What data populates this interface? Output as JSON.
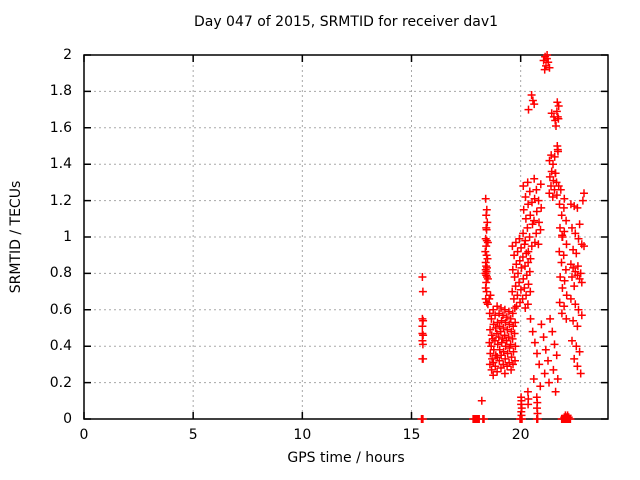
{
  "title": "Day 047 of 2015, SRMTID for receiver dav1",
  "chart_data": {
    "type": "scatter",
    "title": "Day 047 of 2015, SRMTID for receiver dav1",
    "xlabel": "GPS time / hours",
    "ylabel": "SRMTID / TECUs",
    "xlim": [
      0,
      24
    ],
    "ylim": [
      0,
      2
    ],
    "xticks": {
      "values": [
        0,
        5,
        10,
        15,
        20
      ],
      "labels": [
        "0",
        "5",
        "10",
        "15",
        "20"
      ]
    },
    "yticks": {
      "values": [
        0,
        0.2,
        0.4,
        0.6,
        0.8,
        1,
        1.2,
        1.4,
        1.6,
        1.8,
        2
      ],
      "labels": [
        "0",
        "0.2",
        "0.4",
        "0.6",
        "0.8",
        "1",
        "1.2",
        "1.4",
        "1.6",
        "1.8",
        "2"
      ]
    },
    "grid": true,
    "legend": "none",
    "marker": "plus",
    "colors": {
      "marker": "#ff0000",
      "axis": "#000000",
      "grid": "#a8a8a8",
      "background": "#ffffff"
    },
    "points": [
      [
        15.5,
        0.78
      ],
      [
        15.52,
        0.7
      ],
      [
        15.5,
        0.55
      ],
      [
        15.53,
        0.54
      ],
      [
        15.5,
        0.51
      ],
      [
        15.5,
        0.47
      ],
      [
        15.53,
        0.46
      ],
      [
        15.5,
        0.43
      ],
      [
        15.52,
        0.41
      ],
      [
        15.5,
        0.33
      ],
      [
        15.53,
        0.33
      ],
      [
        15.46,
        0.0
      ],
      [
        15.49,
        0.0
      ],
      [
        15.52,
        0.0
      ],
      [
        17.82,
        0
      ],
      [
        17.86,
        0
      ],
      [
        17.9,
        0
      ],
      [
        17.94,
        0
      ],
      [
        17.98,
        0
      ],
      [
        18.02,
        0
      ],
      [
        18.06,
        0
      ],
      [
        18.1,
        0
      ],
      [
        18.27,
        0
      ],
      [
        18.32,
        0
      ],
      [
        19.97,
        0
      ],
      [
        20.0,
        0
      ],
      [
        20.03,
        0
      ],
      [
        20.06,
        0
      ],
      [
        20.74,
        0
      ],
      [
        20.78,
        0
      ],
      [
        21.88,
        0
      ],
      [
        21.92,
        0
      ],
      [
        21.96,
        0
      ],
      [
        22.0,
        0
      ],
      [
        22.04,
        0
      ],
      [
        22.08,
        0
      ],
      [
        22.12,
        0
      ],
      [
        22.16,
        0
      ],
      [
        22.2,
        0
      ],
      [
        22.24,
        0
      ],
      [
        22.28,
        0
      ],
      [
        22.0,
        0.01
      ],
      [
        22.05,
        0.02
      ],
      [
        22.1,
        0.01
      ],
      [
        22.15,
        0.02
      ],
      [
        22.2,
        0.01
      ],
      [
        18.4,
        1.21
      ],
      [
        18.45,
        1.15
      ],
      [
        18.42,
        1.12
      ],
      [
        18.47,
        1.08
      ],
      [
        18.42,
        1.05
      ],
      [
        18.44,
        1.04
      ],
      [
        18.4,
        0.99
      ],
      [
        18.45,
        0.98
      ],
      [
        18.5,
        0.97
      ],
      [
        18.42,
        0.95
      ],
      [
        18.38,
        0.92
      ],
      [
        18.44,
        0.9
      ],
      [
        18.48,
        0.88
      ],
      [
        18.4,
        0.86
      ],
      [
        18.42,
        0.84
      ],
      [
        18.46,
        0.83
      ],
      [
        18.4,
        0.82
      ],
      [
        18.44,
        0.81
      ],
      [
        18.38,
        0.8
      ],
      [
        18.42,
        0.79
      ],
      [
        18.46,
        0.78
      ],
      [
        18.5,
        0.77
      ],
      [
        18.42,
        0.75
      ],
      [
        18.4,
        0.72
      ],
      [
        18.44,
        0.7
      ],
      [
        18.4,
        0.66
      ],
      [
        18.45,
        0.64
      ],
      [
        18.5,
        0.63
      ],
      [
        18.56,
        0.66
      ],
      [
        18.62,
        0.68
      ],
      [
        18.58,
        0.58
      ],
      [
        18.6,
        0.49
      ],
      [
        18.57,
        0.42
      ],
      [
        18.61,
        0.36
      ],
      [
        18.59,
        0.3
      ],
      [
        18.66,
        0.55
      ],
      [
        18.68,
        0.46
      ],
      [
        18.65,
        0.4
      ],
      [
        18.69,
        0.33
      ],
      [
        18.67,
        0.27
      ],
      [
        18.74,
        0.6
      ],
      [
        18.76,
        0.52
      ],
      [
        18.73,
        0.44
      ],
      [
        18.77,
        0.38
      ],
      [
        18.75,
        0.31
      ],
      [
        18.74,
        0.24
      ],
      [
        18.83,
        0.57
      ],
      [
        18.85,
        0.5
      ],
      [
        18.82,
        0.43
      ],
      [
        18.86,
        0.35
      ],
      [
        18.84,
        0.29
      ],
      [
        18.92,
        0.62
      ],
      [
        18.94,
        0.53
      ],
      [
        18.91,
        0.47
      ],
      [
        18.95,
        0.41
      ],
      [
        18.93,
        0.34
      ],
      [
        18.92,
        0.26
      ],
      [
        19.01,
        0.58
      ],
      [
        19.03,
        0.51
      ],
      [
        19.0,
        0.45
      ],
      [
        19.04,
        0.38
      ],
      [
        19.02,
        0.32
      ],
      [
        19.1,
        0.61
      ],
      [
        19.12,
        0.54
      ],
      [
        19.09,
        0.48
      ],
      [
        19.13,
        0.42
      ],
      [
        19.11,
        0.35
      ],
      [
        19.1,
        0.28
      ],
      [
        19.19,
        0.57
      ],
      [
        19.21,
        0.5
      ],
      [
        19.18,
        0.44
      ],
      [
        19.22,
        0.37
      ],
      [
        19.2,
        0.3
      ],
      [
        19.28,
        0.6
      ],
      [
        19.3,
        0.53
      ],
      [
        19.27,
        0.46
      ],
      [
        19.31,
        0.4
      ],
      [
        19.29,
        0.33
      ],
      [
        19.28,
        0.25
      ],
      [
        19.37,
        0.56
      ],
      [
        19.39,
        0.49
      ],
      [
        19.36,
        0.43
      ],
      [
        19.4,
        0.36
      ],
      [
        19.38,
        0.29
      ],
      [
        19.46,
        0.59
      ],
      [
        19.48,
        0.52
      ],
      [
        19.45,
        0.45
      ],
      [
        19.49,
        0.39
      ],
      [
        19.47,
        0.31
      ],
      [
        19.55,
        0.55
      ],
      [
        19.57,
        0.48
      ],
      [
        19.54,
        0.41
      ],
      [
        19.58,
        0.34
      ],
      [
        19.56,
        0.27
      ],
      [
        19.64,
        0.58
      ],
      [
        19.66,
        0.51
      ],
      [
        19.63,
        0.44
      ],
      [
        19.67,
        0.37
      ],
      [
        19.65,
        0.3
      ],
      [
        19.73,
        0.61
      ],
      [
        19.75,
        0.53
      ],
      [
        19.72,
        0.47
      ],
      [
        19.76,
        0.4
      ],
      [
        19.74,
        0.32
      ],
      [
        19.62,
        0.95
      ],
      [
        19.64,
        0.82
      ],
      [
        19.61,
        0.7
      ],
      [
        19.7,
        0.9
      ],
      [
        19.72,
        0.78
      ],
      [
        19.69,
        0.66
      ],
      [
        19.78,
        0.97
      ],
      [
        19.8,
        0.85
      ],
      [
        19.77,
        0.73
      ],
      [
        19.81,
        0.62
      ],
      [
        19.86,
        0.92
      ],
      [
        19.88,
        0.8
      ],
      [
        19.85,
        0.68
      ],
      [
        19.94,
        0.99
      ],
      [
        19.96,
        0.87
      ],
      [
        19.93,
        0.75
      ],
      [
        19.97,
        0.64
      ],
      [
        20.02,
        0.94
      ],
      [
        20.04,
        0.83
      ],
      [
        20.01,
        0.71
      ],
      [
        20.1,
        0.89
      ],
      [
        20.12,
        0.77
      ],
      [
        20.09,
        0.66
      ],
      [
        20.18,
        0.96
      ],
      [
        20.2,
        0.84
      ],
      [
        20.17,
        0.72
      ],
      [
        20.21,
        0.61
      ],
      [
        20.26,
        0.91
      ],
      [
        20.28,
        0.79
      ],
      [
        20.25,
        0.68
      ],
      [
        20.34,
        0.86
      ],
      [
        20.36,
        0.74
      ],
      [
        20.33,
        0.63
      ],
      [
        20.42,
        0.81
      ],
      [
        20.44,
        0.7
      ],
      [
        20.12,
        1.28
      ],
      [
        20.14,
        1.15
      ],
      [
        20.11,
        1.02
      ],
      [
        20.22,
        1.22
      ],
      [
        20.24,
        1.1
      ],
      [
        20.21,
        0.98
      ],
      [
        20.32,
        1.3
      ],
      [
        20.34,
        1.18
      ],
      [
        20.31,
        1.05
      ],
      [
        20.35,
        0.92
      ],
      [
        20.42,
        1.25
      ],
      [
        20.44,
        1.12
      ],
      [
        20.41,
        1.0
      ],
      [
        20.45,
        0.88
      ],
      [
        20.52,
        1.19
      ],
      [
        20.54,
        1.07
      ],
      [
        20.51,
        0.95
      ],
      [
        20.62,
        1.32
      ],
      [
        20.64,
        1.21
      ],
      [
        20.61,
        1.09
      ],
      [
        20.65,
        0.97
      ],
      [
        20.72,
        1.26
      ],
      [
        20.74,
        1.14
      ],
      [
        20.71,
        1.02
      ],
      [
        20.82,
        1.2
      ],
      [
        20.84,
        1.08
      ],
      [
        20.81,
        0.96
      ],
      [
        20.92,
        1.29
      ],
      [
        20.94,
        1.16
      ],
      [
        20.91,
        1.04
      ],
      [
        20.5,
        1.78
      ],
      [
        20.56,
        1.75
      ],
      [
        20.62,
        1.73
      ],
      [
        20.36,
        1.7
      ],
      [
        21.05,
        1.97
      ],
      [
        21.12,
        1.99
      ],
      [
        21.2,
        1.98
      ],
      [
        21.16,
        1.94
      ],
      [
        21.26,
        1.96
      ],
      [
        21.1,
        1.92
      ],
      [
        21.32,
        1.93
      ],
      [
        21.21,
        2.0
      ],
      [
        21.42,
        1.68
      ],
      [
        21.52,
        1.66
      ],
      [
        21.58,
        1.64
      ],
      [
        21.62,
        1.61
      ],
      [
        21.32,
        1.42
      ],
      [
        21.34,
        1.33
      ],
      [
        21.31,
        1.24
      ],
      [
        21.4,
        1.45
      ],
      [
        21.42,
        1.36
      ],
      [
        21.39,
        1.28
      ],
      [
        21.48,
        1.4
      ],
      [
        21.5,
        1.31
      ],
      [
        21.47,
        1.22
      ],
      [
        21.56,
        1.44
      ],
      [
        21.58,
        1.35
      ],
      [
        21.55,
        1.26
      ],
      [
        21.68,
        1.74
      ],
      [
        21.74,
        1.72
      ],
      [
        21.66,
        1.69
      ],
      [
        21.7,
        1.66
      ],
      [
        21.73,
        1.65
      ],
      [
        21.68,
        1.5
      ],
      [
        21.7,
        1.48
      ],
      [
        21.71,
        1.47
      ],
      [
        21.6,
        1.35
      ],
      [
        21.64,
        1.3
      ],
      [
        21.74,
        1.28
      ],
      [
        21.84,
        1.26
      ],
      [
        21.66,
        1.23
      ],
      [
        21.78,
        1.18
      ],
      [
        21.8,
        1.05
      ],
      [
        21.77,
        0.92
      ],
      [
        21.81,
        0.78
      ],
      [
        21.79,
        0.64
      ],
      [
        21.88,
        1.12
      ],
      [
        21.9,
        1.0
      ],
      [
        21.87,
        0.86
      ],
      [
        21.91,
        0.72
      ],
      [
        21.89,
        0.58
      ],
      [
        21.98,
        1.16
      ],
      [
        22.0,
        1.03
      ],
      [
        21.97,
        0.9
      ],
      [
        22.01,
        0.76
      ],
      [
        21.99,
        0.62
      ],
      [
        22.08,
        1.09
      ],
      [
        22.1,
        0.96
      ],
      [
        22.07,
        0.82
      ],
      [
        22.11,
        0.68
      ],
      [
        22.09,
        0.55
      ],
      [
        21.9,
        1.01
      ],
      [
        21.92,
        1.0
      ],
      [
        22.0,
        1.21
      ],
      [
        22.3,
        1.18
      ],
      [
        22.45,
        1.17
      ],
      [
        22.6,
        1.16
      ],
      [
        22.9,
        1.24
      ],
      [
        22.85,
        1.2
      ],
      [
        22.35,
        1.05
      ],
      [
        22.5,
        1.02
      ],
      [
        22.65,
        0.99
      ],
      [
        22.8,
        0.96
      ],
      [
        22.4,
        0.93
      ],
      [
        22.55,
        0.91
      ],
      [
        22.7,
        1.07
      ],
      [
        22.9,
        0.95
      ],
      [
        22.3,
        0.85
      ],
      [
        22.4,
        0.83
      ],
      [
        22.5,
        0.81
      ],
      [
        22.6,
        0.79
      ],
      [
        22.7,
        0.77
      ],
      [
        22.8,
        0.75
      ],
      [
        22.45,
        0.73
      ],
      [
        22.62,
        0.84
      ],
      [
        22.75,
        0.8
      ],
      [
        22.35,
        0.78
      ],
      [
        22.3,
        0.66
      ],
      [
        22.5,
        0.63
      ],
      [
        22.65,
        0.6
      ],
      [
        22.8,
        0.57
      ],
      [
        22.4,
        0.54
      ],
      [
        22.6,
        0.51
      ],
      [
        22.35,
        0.43
      ],
      [
        22.55,
        0.4
      ],
      [
        22.7,
        0.37
      ],
      [
        22.45,
        0.33
      ],
      [
        22.6,
        0.29
      ],
      [
        22.75,
        0.25
      ],
      [
        20.45,
        0.55
      ],
      [
        20.55,
        0.48
      ],
      [
        20.65,
        0.42
      ],
      [
        20.75,
        0.36
      ],
      [
        20.85,
        0.3
      ],
      [
        20.95,
        0.52
      ],
      [
        21.05,
        0.45
      ],
      [
        21.15,
        0.38
      ],
      [
        21.25,
        0.32
      ],
      [
        21.35,
        0.55
      ],
      [
        21.45,
        0.48
      ],
      [
        21.55,
        0.41
      ],
      [
        21.65,
        0.35
      ],
      [
        21.1,
        0.25
      ],
      [
        21.3,
        0.2
      ],
      [
        21.5,
        0.27
      ],
      [
        20.6,
        0.22
      ],
      [
        20.9,
        0.18
      ],
      [
        21.7,
        0.22
      ],
      [
        21.6,
        0.15
      ],
      [
        20.02,
        0.12
      ],
      [
        20.04,
        0.1
      ],
      [
        20.02,
        0.08
      ],
      [
        20.05,
        0.06
      ],
      [
        20.03,
        0.04
      ],
      [
        20.04,
        0.02
      ],
      [
        20.33,
        0.15
      ],
      [
        20.35,
        0.11
      ],
      [
        20.34,
        0.08
      ],
      [
        20.74,
        0.12
      ],
      [
        20.76,
        0.09
      ],
      [
        20.75,
        0.06
      ],
      [
        20.77,
        0.03
      ],
      [
        18.22,
        0.1
      ]
    ]
  }
}
